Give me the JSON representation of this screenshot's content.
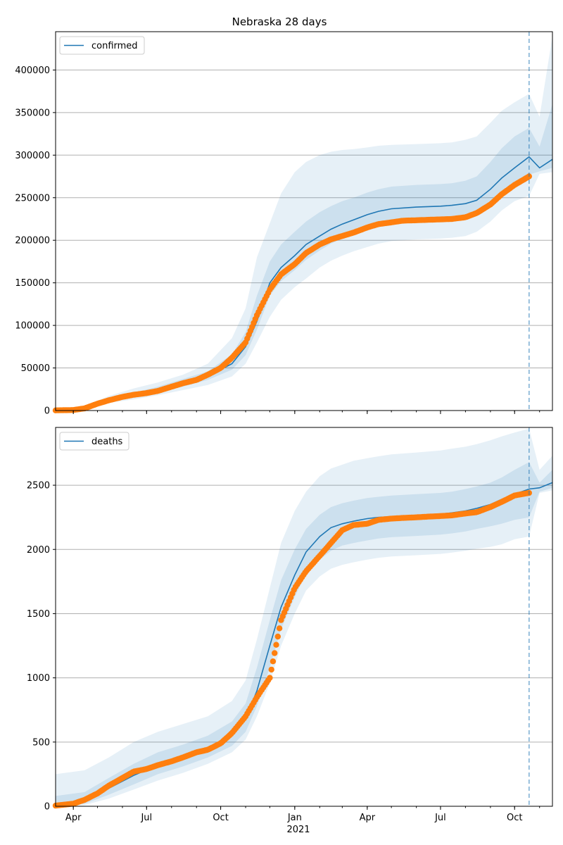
{
  "figure": {
    "title": "Nebraska 28 days",
    "year_label": "2021"
  },
  "colors": {
    "model": "#1f77b4",
    "observed": "#ff7f0e",
    "band": "#1f77b4",
    "grid": "#b0b0b0"
  },
  "chart_data": [
    {
      "type": "line",
      "panel": "top",
      "title": "Nebraska 28 days",
      "xlabel": "",
      "ylabel": "",
      "legend": {
        "entries": [
          "confirmed"
        ],
        "placement": "top-left"
      },
      "grid": "y-only",
      "xlim": [
        "2020-03-10",
        "2021-11-17"
      ],
      "ylim": [
        0,
        445000
      ],
      "x_ticks": [
        "Apr",
        "Jul",
        "Oct",
        "Jan",
        "Apr",
        "Jul",
        "Oct"
      ],
      "y_ticks": [
        0,
        50000,
        100000,
        150000,
        200000,
        250000,
        300000,
        350000,
        400000
      ],
      "forecast_start": "2021-10-19",
      "x": [
        "2020-03-10",
        "2020-04-15",
        "2020-05-15",
        "2020-06-15",
        "2020-07-15",
        "2020-08-15",
        "2020-09-15",
        "2020-10-15",
        "2020-11-01",
        "2020-11-15",
        "2020-12-01",
        "2020-12-15",
        "2021-01-01",
        "2021-01-15",
        "2021-02-01",
        "2021-02-15",
        "2021-03-01",
        "2021-03-15",
        "2021-04-01",
        "2021-04-15",
        "2021-05-01",
        "2021-06-01",
        "2021-07-01",
        "2021-07-15",
        "2021-08-01",
        "2021-08-15",
        "2021-09-01",
        "2021-09-15",
        "2021-10-01",
        "2021-10-19",
        "2021-11-01",
        "2021-11-17"
      ],
      "series": [
        {
          "name": "confirmed",
          "kind": "model",
          "values": [
            500,
            3000,
            12000,
            18000,
            24000,
            32000,
            40000,
            55000,
            75000,
            105000,
            150000,
            168000,
            182000,
            195000,
            205000,
            213000,
            219000,
            224000,
            230000,
            234000,
            237000,
            239000,
            240000,
            241000,
            243000,
            247000,
            260000,
            273000,
            285000,
            298000,
            285000,
            295000
          ],
          "band_outer_low": [
            0,
            1500,
            9000,
            13000,
            18000,
            24000,
            30000,
            40000,
            55000,
            80000,
            110000,
            130000,
            145000,
            155000,
            168000,
            176000,
            182000,
            187000,
            192000,
            196000,
            199000,
            201000,
            202000,
            203000,
            205000,
            210000,
            222000,
            235000,
            246000,
            252000,
            278000,
            280000
          ],
          "band_outer_high": [
            2000,
            5000,
            17000,
            26000,
            33000,
            42000,
            55000,
            85000,
            120000,
            180000,
            220000,
            255000,
            280000,
            292000,
            300000,
            304000,
            306000,
            307000,
            309000,
            311000,
            312000,
            313000,
            314000,
            315000,
            318000,
            322000,
            338000,
            352000,
            362000,
            372000,
            345000,
            440000
          ],
          "band_inner_low": [
            300,
            2500,
            11000,
            16000,
            21000,
            28000,
            36000,
            48000,
            65000,
            95000,
            135000,
            152000,
            165000,
            177000,
            188000,
            196000,
            202000,
            206000,
            212000,
            216000,
            219000,
            221000,
            222000,
            223000,
            225000,
            230000,
            243000,
            256000,
            267000,
            277000,
            281000,
            285000
          ],
          "band_inner_high": [
            1000,
            4000,
            14000,
            21000,
            28000,
            37000,
            46000,
            66000,
            92000,
            135000,
            175000,
            195000,
            210000,
            222000,
            233000,
            240000,
            246000,
            250000,
            256000,
            260000,
            263000,
            265000,
            266000,
            267000,
            270000,
            275000,
            292000,
            308000,
            322000,
            332000,
            310000,
            360000
          ]
        },
        {
          "name": "",
          "kind": "observed",
          "x": [
            "2020-03-10",
            "2020-04-01",
            "2020-04-15",
            "2020-05-01",
            "2020-05-15",
            "2020-06-01",
            "2020-06-15",
            "2020-07-01",
            "2020-07-15",
            "2020-08-01",
            "2020-08-15",
            "2020-09-01",
            "2020-09-15",
            "2020-10-01",
            "2020-10-15",
            "2020-11-01",
            "2020-11-15",
            "2020-12-01",
            "2020-12-15",
            "2021-01-01",
            "2021-01-15",
            "2021-02-01",
            "2021-02-15",
            "2021-03-01",
            "2021-03-15",
            "2021-04-01",
            "2021-04-15",
            "2021-05-01",
            "2021-05-15",
            "2021-06-01",
            "2021-06-15",
            "2021-07-01",
            "2021-07-15",
            "2021-08-01",
            "2021-08-15",
            "2021-09-01",
            "2021-09-15",
            "2021-10-01",
            "2021-10-19"
          ],
          "values": [
            200,
            600,
            2500,
            8000,
            12000,
            16000,
            18500,
            20500,
            23000,
            28000,
            32000,
            36000,
            42000,
            50000,
            62000,
            80000,
            112000,
            142000,
            160000,
            172000,
            185000,
            195000,
            201000,
            205000,
            209000,
            215000,
            219000,
            221000,
            223000,
            223500,
            224000,
            224500,
            225000,
            227000,
            232000,
            242000,
            254000,
            265000,
            275000
          ]
        }
      ]
    },
    {
      "type": "line",
      "panel": "bottom",
      "xlabel": "",
      "ylabel": "",
      "legend": {
        "entries": [
          "deaths"
        ],
        "placement": "top-left"
      },
      "grid": "y-only",
      "xlim": [
        "2020-03-10",
        "2021-11-17"
      ],
      "ylim": [
        0,
        2950
      ],
      "x_ticks": [
        "Apr",
        "Jul",
        "Oct",
        "Jan",
        "Apr",
        "Jul",
        "Oct"
      ],
      "y_ticks": [
        0,
        500,
        1000,
        1500,
        2000,
        2500
      ],
      "forecast_start": "2021-10-19",
      "x": [
        "2020-03-10",
        "2020-04-15",
        "2020-05-15",
        "2020-06-15",
        "2020-07-15",
        "2020-08-15",
        "2020-09-15",
        "2020-10-15",
        "2020-11-01",
        "2020-11-15",
        "2020-12-01",
        "2020-12-15",
        "2021-01-01",
        "2021-01-15",
        "2021-02-01",
        "2021-02-15",
        "2021-03-01",
        "2021-03-15",
        "2021-04-01",
        "2021-04-15",
        "2021-05-01",
        "2021-06-01",
        "2021-07-01",
        "2021-07-15",
        "2021-08-01",
        "2021-08-15",
        "2021-09-01",
        "2021-09-15",
        "2021-10-01",
        "2021-10-19",
        "2021-11-01",
        "2021-11-17"
      ],
      "series": [
        {
          "name": "deaths",
          "kind": "model",
          "values": [
            0,
            40,
            140,
            240,
            320,
            380,
            450,
            560,
            680,
            900,
            1250,
            1550,
            1800,
            1980,
            2100,
            2170,
            2200,
            2220,
            2240,
            2250,
            2255,
            2265,
            2275,
            2285,
            2300,
            2320,
            2350,
            2390,
            2430,
            2470,
            2480,
            2520
          ],
          "band_outer_low": [
            0,
            10,
            60,
            130,
            200,
            260,
            330,
            420,
            520,
            700,
            960,
            1250,
            1500,
            1680,
            1790,
            1850,
            1880,
            1900,
            1920,
            1935,
            1945,
            1955,
            1965,
            1975,
            1990,
            2005,
            2020,
            2040,
            2080,
            2100,
            2440,
            2460
          ],
          "band_outer_high": [
            250,
            280,
            380,
            500,
            580,
            640,
            700,
            820,
            980,
            1300,
            1700,
            2050,
            2300,
            2450,
            2570,
            2630,
            2660,
            2690,
            2710,
            2725,
            2740,
            2755,
            2770,
            2785,
            2800,
            2820,
            2850,
            2880,
            2910,
            2940,
            2620,
            2730
          ],
          "band_inner_low": [
            0,
            20,
            90,
            170,
            250,
            310,
            380,
            470,
            580,
            780,
            1080,
            1380,
            1630,
            1810,
            1920,
            1990,
            2030,
            2050,
            2070,
            2085,
            2095,
            2105,
            2115,
            2125,
            2140,
            2160,
            2180,
            2200,
            2230,
            2250,
            2450,
            2480
          ],
          "band_inner_high": [
            80,
            110,
            220,
            330,
            420,
            480,
            550,
            660,
            800,
            1080,
            1450,
            1760,
            2000,
            2160,
            2270,
            2330,
            2360,
            2380,
            2400,
            2410,
            2420,
            2430,
            2440,
            2450,
            2470,
            2490,
            2520,
            2560,
            2620,
            2680,
            2520,
            2620
          ]
        },
        {
          "name": "",
          "kind": "observed",
          "x": [
            "2020-03-10",
            "2020-04-01",
            "2020-04-15",
            "2020-05-01",
            "2020-05-15",
            "2020-06-01",
            "2020-06-15",
            "2020-07-01",
            "2020-07-15",
            "2020-08-01",
            "2020-08-15",
            "2020-09-01",
            "2020-09-15",
            "2020-10-01",
            "2020-10-15",
            "2020-11-01",
            "2020-11-15",
            "2020-12-01",
            "2020-12-15",
            "2021-01-01",
            "2021-01-15",
            "2021-02-01",
            "2021-02-15",
            "2021-03-01",
            "2021-03-15",
            "2021-04-01",
            "2021-04-15",
            "2021-05-01",
            "2021-05-15",
            "2021-06-01",
            "2021-06-15",
            "2021-07-01",
            "2021-07-15",
            "2021-08-01",
            "2021-08-15",
            "2021-09-01",
            "2021-09-15",
            "2021-10-01",
            "2021-10-19"
          ],
          "values": [
            5,
            20,
            50,
            100,
            160,
            220,
            270,
            290,
            320,
            350,
            380,
            420,
            440,
            490,
            570,
            700,
            850,
            1000,
            1450,
            1700,
            1830,
            1950,
            2050,
            2150,
            2190,
            2200,
            2230,
            2240,
            2245,
            2250,
            2255,
            2260,
            2265,
            2280,
            2290,
            2330,
            2370,
            2420,
            2440
          ]
        }
      ]
    }
  ]
}
